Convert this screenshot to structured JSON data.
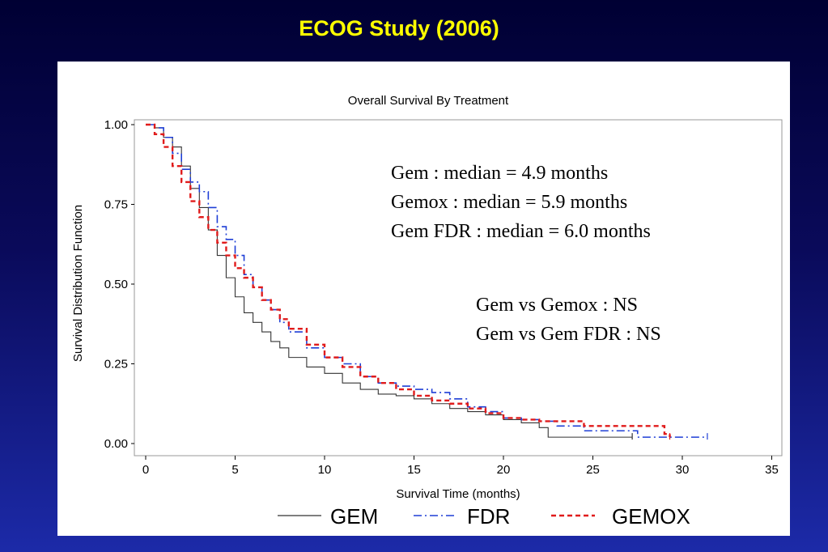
{
  "slide": {
    "title": "ECOG Study (2006)"
  },
  "annotations": {
    "medians": [
      "Gem : median  = 4.9 months",
      "Gemox : median  = 5.9 months",
      "Gem FDR : median  = 6.0 months"
    ],
    "comparisons": [
      "Gem vs Gemox : NS",
      "Gem vs Gem FDR : NS"
    ]
  },
  "chart_data": {
    "type": "line",
    "title": "Overall Survival By Treatment",
    "xlabel": "Survival  Time  (months)",
    "ylabel": "Survival  Distribution  Function",
    "xlim": [
      0,
      35
    ],
    "ylim": [
      0,
      1
    ],
    "xticks": [
      "0",
      "5",
      "10",
      "15",
      "20",
      "25",
      "30",
      "35"
    ],
    "yticks": [
      "0.00",
      "0.25",
      "0.50",
      "0.75",
      "1.00"
    ],
    "grid": false,
    "legend_position": "bottom",
    "series": [
      {
        "name": "GEM",
        "color": "#333333",
        "dash": "solid",
        "x": [
          0,
          0.5,
          1,
          1.5,
          2,
          2.5,
          3,
          3.5,
          4,
          4.5,
          5,
          5.5,
          6,
          6.5,
          7,
          7.5,
          8,
          9,
          10,
          11,
          12,
          13,
          14,
          15,
          16,
          17,
          18,
          19,
          20,
          21,
          22,
          22.5,
          24,
          27.2
        ],
        "y": [
          1.0,
          0.99,
          0.96,
          0.93,
          0.87,
          0.8,
          0.74,
          0.67,
          0.59,
          0.52,
          0.46,
          0.41,
          0.38,
          0.35,
          0.32,
          0.3,
          0.27,
          0.24,
          0.22,
          0.19,
          0.17,
          0.155,
          0.15,
          0.14,
          0.125,
          0.11,
          0.1,
          0.09,
          0.075,
          0.065,
          0.05,
          0.02,
          0.02,
          0.02
        ]
      },
      {
        "name": "FDR",
        "color": "#1f3fd6",
        "dash": "dashdot",
        "x": [
          0,
          0.5,
          1,
          1.5,
          2,
          2.5,
          3,
          3.5,
          4,
          4.5,
          5,
          5.5,
          6,
          6.5,
          7,
          7.5,
          8,
          9,
          10,
          11,
          12,
          13,
          14,
          15,
          16,
          17,
          18,
          19,
          20,
          21,
          22,
          23,
          24.5,
          27.5,
          29,
          31.4
        ],
        "y": [
          1.0,
          0.99,
          0.96,
          0.91,
          0.86,
          0.82,
          0.79,
          0.74,
          0.68,
          0.64,
          0.59,
          0.53,
          0.49,
          0.45,
          0.42,
          0.38,
          0.35,
          0.3,
          0.27,
          0.25,
          0.21,
          0.19,
          0.18,
          0.17,
          0.16,
          0.14,
          0.115,
          0.1,
          0.08,
          0.075,
          0.07,
          0.055,
          0.04,
          0.02,
          0.02,
          0.02
        ]
      },
      {
        "name": "GEMOX",
        "color": "#e01b1b",
        "dash": "dashed",
        "x": [
          0,
          0.5,
          1,
          1.5,
          2,
          2.5,
          3,
          3.5,
          4,
          4.5,
          5,
          5.5,
          6,
          6.5,
          7,
          7.5,
          8,
          9,
          10,
          11,
          12,
          13,
          14,
          15,
          16,
          17,
          18,
          19,
          20,
          21,
          22,
          24.5,
          29,
          29.3
        ],
        "y": [
          1.0,
          0.97,
          0.93,
          0.87,
          0.82,
          0.76,
          0.71,
          0.67,
          0.63,
          0.59,
          0.55,
          0.52,
          0.49,
          0.45,
          0.42,
          0.39,
          0.36,
          0.31,
          0.27,
          0.24,
          0.21,
          0.19,
          0.17,
          0.15,
          0.135,
          0.125,
          0.11,
          0.095,
          0.08,
          0.075,
          0.07,
          0.055,
          0.03,
          0.02
        ]
      }
    ]
  }
}
